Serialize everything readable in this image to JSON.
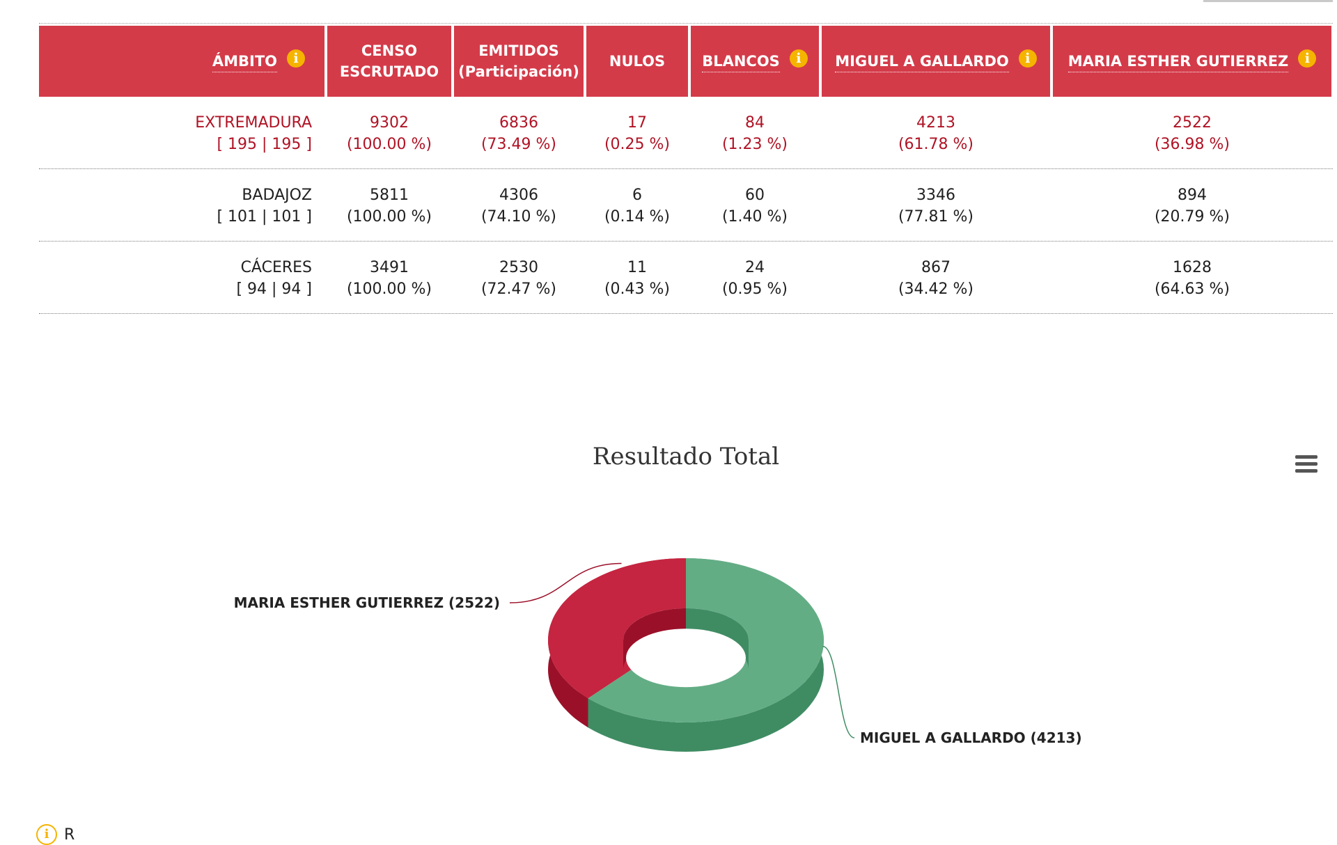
{
  "table": {
    "headers": {
      "ambito": "ÁMBITO",
      "censo_l1": "CENSO",
      "censo_l2": "ESCRUTADO",
      "emitidos_l1": "EMITIDOS",
      "emitidos_l2": "(Participación)",
      "nulos": "NULOS",
      "blancos": "BLANCOS",
      "cand1": "MIGUEL A GALLARDO",
      "cand2": "MARIA ESTHER GUTIERREZ"
    },
    "info_glyph": "i",
    "rows": [
      {
        "ambito": "EXTREMADURA",
        "mesas": "[ 195 | 195 ]",
        "censo": "9302",
        "censo_pct": "(100.00 %)",
        "emitidos": "6836",
        "emitidos_pct": "(73.49 %)",
        "nulos": "17",
        "nulos_pct": "(0.25 %)",
        "blancos": "84",
        "blancos_pct": "(1.23 %)",
        "cand1": "4213",
        "cand1_pct": "(61.78 %)",
        "cand2": "2522",
        "cand2_pct": "(36.98 %)"
      },
      {
        "ambito": "BADAJOZ",
        "mesas": "[ 101 | 101 ]",
        "censo": "5811",
        "censo_pct": "(100.00 %)",
        "emitidos": "4306",
        "emitidos_pct": "(74.10 %)",
        "nulos": "6",
        "nulos_pct": "(0.14 %)",
        "blancos": "60",
        "blancos_pct": "(1.40 %)",
        "cand1": "3346",
        "cand1_pct": "(77.81 %)",
        "cand2": "894",
        "cand2_pct": "(20.79 %)"
      },
      {
        "ambito": "CÁCERES",
        "mesas": "[ 94 | 94 ]",
        "censo": "3491",
        "censo_pct": "(100.00 %)",
        "emitidos": "2530",
        "emitidos_pct": "(72.47 %)",
        "nulos": "11",
        "nulos_pct": "(0.43 %)",
        "blancos": "24",
        "blancos_pct": "(0.95 %)",
        "cand1": "867",
        "cand1_pct": "(34.42 %)",
        "cand2": "1628",
        "cand2_pct": "(64.63 %)"
      }
    ]
  },
  "colors": {
    "header_bg": "#d43b49",
    "total_row_text": "#b01325",
    "cand1_slice": "#63ad85",
    "cand1_side": "#3f8c63",
    "cand2_slice": "#c52540",
    "cand2_side": "#9b1029"
  },
  "icons": {
    "menu": "hamburger-menu-icon",
    "info": "info-icon"
  },
  "footnote": {
    "text": "R"
  },
  "chart_data": {
    "type": "pie",
    "style": "3d-donut",
    "title": "Resultado Total",
    "categories": [
      "MIGUEL A GALLARDO",
      "MARIA ESTHER GUTIERREZ"
    ],
    "values": [
      4213,
      2522
    ],
    "labels": [
      "MIGUEL A GALLARDO (4213)",
      "MARIA ESTHER GUTIERREZ (2522)"
    ],
    "colors": [
      "#63ad85",
      "#c52540"
    ]
  }
}
